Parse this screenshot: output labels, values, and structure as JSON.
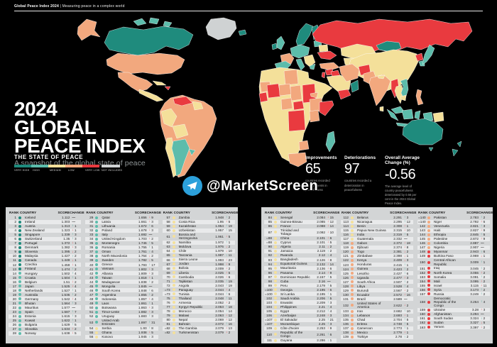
{
  "header": {
    "brand": "Global Peace Index 2024",
    "tagline": "| Measuring peace in a complex world"
  },
  "title": {
    "line1": "2024",
    "line2": "GLOBAL",
    "line3": "PEACE INDEX",
    "subtitle": "A snapshot of the global state of peace"
  },
  "legend": {
    "heading": "THE STATE OF PEACE",
    "labels": [
      "VERY HIGH",
      "HIGH",
      "MEDIUM",
      "LOW",
      "VERY LOW",
      "NOT INCLUDED"
    ]
  },
  "stats": {
    "improvements": {
      "label": "Improvements",
      "value": "65",
      "caption": "countries recorded improvements in peacefulness"
    },
    "deteriorations": {
      "label": "Deteriorations",
      "value": "97",
      "caption": "countries recorded a deterioration in peacefulness"
    },
    "overall": {
      "label": "Overall Average Change (%)",
      "value": "-0.56",
      "caption": "The average level of country peacefulness deteriorated by 0.56 per cent in the 2024 Global Peace Index."
    }
  },
  "watermark": {
    "handle": "@MarketScreen"
  },
  "colors": {
    "very_high": "#1f8b7d",
    "high": "#5cbcab",
    "medium": "#f4e09a",
    "low": "#f2a87e",
    "very_low": "#e93a3f",
    "not_included": "#cfd2d3",
    "telegram_blue": "#2ca0da",
    "up_arrow": "#2a9d8a",
    "down_arrow": "#e5393e",
    "panel_bg": "#d3d5d6",
    "row_stripe": "#e9eaeb"
  },
  "score_bands": {
    "very_high_max": 1.5,
    "high_max": 1.92,
    "medium_max": 2.36,
    "low_max": 2.92
  },
  "chart_data": {
    "type": "table",
    "headers": [
      "RANK",
      "COUNTRY",
      "SCORE",
      "CHANGE"
    ],
    "columns": [
      [
        [
          "1",
          "Iceland",
          "1.112",
          "0"
        ],
        [
          "2",
          "Ireland",
          "1.303",
          "0"
        ],
        [
          "3",
          "Austria",
          "1.313",
          "+1"
        ],
        [
          "4",
          "New Zealand",
          "1.323",
          "-1"
        ],
        [
          "5",
          "Singapore",
          "1.339",
          "+3"
        ],
        [
          "6",
          "Switzerland",
          "1.35",
          "+3"
        ],
        [
          "7",
          "Portugal",
          "1.372",
          "-1"
        ],
        [
          "8",
          "Denmark",
          "1.382",
          "-3"
        ],
        [
          "9",
          "Slovenia",
          "1.395",
          "-2"
        ],
        [
          "10",
          "Malaysia",
          "1.427",
          "+2"
        ],
        [
          "11",
          "Canada",
          "1.449",
          "-1"
        ],
        [
          "12",
          "Czechia",
          "1.459",
          "-1"
        ],
        [
          "13",
          "Finland",
          "1.474",
          "+2"
        ],
        [
          "14",
          "Hungary",
          "1.502",
          "+4"
        ],
        [
          "15",
          "Croatia",
          "1.504",
          "+1"
        ],
        [
          "16",
          "Belgium",
          "1.51",
          "-2"
        ],
        [
          "17",
          "Japan",
          "1.525",
          "-4"
        ],
        [
          "18",
          "Netherlands",
          "1.527",
          "+1"
        ],
        [
          "19",
          "Australia",
          "1.536",
          "+2"
        ],
        [
          "20",
          "Germany",
          "1.542",
          "-4"
        ],
        [
          "21",
          "Bhutan",
          "1.564",
          "+3"
        ],
        [
          "22",
          "Mauritius",
          "1.577",
          "0"
        ],
        [
          "23",
          "Spain",
          "1.587",
          "+7"
        ],
        [
          "24",
          "Estonia",
          "1.615",
          "+3"
        ],
        [
          "25",
          "Kuwait",
          "1.622",
          "+1"
        ],
        [
          "26",
          "Bulgaria",
          "1.629",
          "+5"
        ],
        [
          "27",
          "Slovakia",
          "1.634",
          "-2"
        ],
        [
          "28",
          "Norway",
          "1.638",
          "-5"
        ]
      ],
      [
        [
          "29",
          "Qatar",
          "1.656",
          "-9"
        ],
        [
          "30",
          "Latvia",
          "1.661",
          "-3"
        ],
        [
          "31",
          "Lithuania",
          "1.672",
          "+6"
        ],
        [
          "32",
          "Poland",
          "1.678",
          "-3"
        ],
        [
          "33",
          "Italy",
          "1.692",
          "0"
        ],
        [
          "34",
          "United Kingdom",
          "1.703",
          "-2"
        ],
        [
          "35",
          "Montenegro",
          "1.746",
          "+5"
        ],
        [
          "36",
          "Romania",
          "1.755",
          "+1"
        ],
        [
          "37",
          "Oman",
          "1.761",
          "+4"
        ],
        [
          "38",
          "North Macedonia",
          "1.764",
          "-2"
        ],
        [
          "39",
          "Sweden",
          "1.782",
          "-5"
        ],
        [
          "40",
          "Greece",
          "1.793",
          "+17"
        ],
        [
          "41",
          "Vietnam",
          "1.802",
          "-3"
        ],
        [
          "42",
          "Albania",
          "1.809",
          "-3"
        ],
        [
          "43",
          "Taiwan",
          "1.818",
          "-1"
        ],
        [
          "44",
          "Madagascar",
          "1.838",
          "+2"
        ],
        [
          "45",
          "Mongolia",
          "1.845",
          "0"
        ],
        [
          "46",
          "South Korea",
          "1.848",
          "+6"
        ],
        [
          "47",
          "Argentina",
          "1.855",
          "+2"
        ],
        [
          "48",
          "Indonesia",
          "1.857",
          "-4"
        ],
        [
          "49",
          "Laos",
          "1.861",
          "+1"
        ],
        [
          "50",
          "Botswana",
          "1.863",
          "-3"
        ],
        [
          "51",
          "Timor-Leste",
          "1.882",
          "-3"
        ],
        [
          "52",
          "Uruguay",
          "1.883",
          "+3"
        ],
        [
          "53",
          "United Arab Emirates",
          "1.897",
          "+31"
        ],
        [
          "54",
          "Serbia",
          "1.93",
          "+8"
        ],
        [
          "55",
          "Ghana",
          "1.938",
          "-5"
        ],
        [
          "56",
          "Kosovo",
          "1.945",
          "+3"
        ]
      ],
      [
        [
          "57",
          "Zambia",
          "1.948",
          "+2"
        ],
        [
          "58",
          "Costa Rica",
          "1.95",
          "-5"
        ],
        [
          "59",
          "Kazakhstan",
          "1.954",
          "+19"
        ],
        [
          "60",
          "Uzbekistan",
          "1.957",
          "+15"
        ],
        [
          "61",
          "Bosnia and Herzegovina",
          "1.961",
          "-5"
        ],
        [
          "62",
          "Namibia",
          "1.972",
          "+1"
        ],
        [
          "63",
          "Moldova",
          "1.976",
          "-2"
        ],
        [
          "64",
          "Chile",
          "1.979",
          "-10"
        ],
        [
          "65",
          "Tanzania",
          "1.987",
          "+11"
        ],
        [
          "66",
          "Sierra Leone",
          "1.993",
          "-23"
        ],
        [
          "67",
          "Jordan",
          "1.998",
          "-9"
        ],
        [
          "68",
          "Bolivia",
          "2.009",
          "-2"
        ],
        [
          "69",
          "Liberia",
          "2.025",
          "-5"
        ],
        [
          "70",
          "Cambodia",
          "2.026",
          "-6"
        ],
        [
          "71",
          "Tajikistan",
          "2.035",
          "+19"
        ],
        [
          "72",
          "Angola",
          "2.043",
          "+19"
        ],
        [
          "=73",
          "Paraguay",
          "2.044",
          "-4"
        ],
        [
          "=73",
          "Tunisia",
          "2.044",
          "+6"
        ],
        [
          "75",
          "Thailand",
          "2.048",
          "+11"
        ],
        [
          "76",
          "Armenia",
          "2.052",
          "-2"
        ],
        [
          "77",
          "Kyrgyz Republic",
          "2.053",
          "+18"
        ],
        [
          "78",
          "Morocco",
          "2.054",
          "+14"
        ],
        [
          "79",
          "Malawi",
          "2.063",
          "-12"
        ],
        [
          "80",
          "Nepal",
          "2.069",
          "-12"
        ],
        [
          "81",
          "Bahrain",
          "2.072",
          "+16"
        ],
        [
          "=82",
          "The Gambia",
          "2.079",
          "-13"
        ],
        [
          "=82",
          "Turkmenistan",
          "2.079",
          "-2"
        ]
      ],
      [
        [
          "84",
          "Senegal",
          "2.084",
          "-15"
        ],
        [
          "85",
          "Guinea-Bissau",
          "2.085",
          "-12"
        ],
        [
          "86",
          "France",
          "2.088",
          "-14"
        ],
        [
          "87",
          "Trinidad and Tobago",
          "2.092",
          "-10"
        ],
        [
          "=88",
          "China",
          "2.101",
          "-6"
        ],
        [
          "=88",
          "Cyprus",
          "2.101",
          "-5"
        ],
        [
          "90",
          "Algeria",
          "2.11",
          "-2"
        ],
        [
          "91",
          "Jamaica",
          "2.119",
          "+2"
        ],
        [
          "92",
          "Rwanda",
          "2.12",
          "+4"
        ],
        [
          "93",
          "Bangladesh",
          "2.126",
          "-8"
        ],
        [
          "94",
          "Equatorial Guinea",
          "2.132",
          "-14"
        ],
        [
          "95",
          "Mauritania",
          "2.136",
          "-6"
        ],
        [
          "96",
          "Panama",
          "2.14",
          "-9"
        ],
        [
          "97",
          "Dominican Republic",
          "2.157",
          "+5"
        ],
        [
          "98",
          "Cuba",
          "2.16",
          "0"
        ],
        [
          "99",
          "Peru",
          "2.179",
          "+5"
        ],
        [
          "=100",
          "Georgia",
          "2.195",
          "-6"
        ],
        [
          "=100",
          "Sri Lanka",
          "2.195",
          "+1"
        ],
        [
          "102",
          "Saudi Arabia",
          "2.206",
          "+5"
        ],
        [
          "103",
          "Eswatini",
          "2.209",
          "+3"
        ],
        [
          "104",
          "Philippines",
          "2.21",
          "+4"
        ],
        [
          "105",
          "Egypt",
          "2.212",
          "+4"
        ],
        [
          "106",
          "Azerbaijan",
          "2.248",
          "-3"
        ],
        [
          "=107",
          "El Salvador",
          "2.25",
          "+21"
        ],
        [
          "=107",
          "Mozambique",
          "2.25",
          "+3"
        ],
        [
          "109",
          "Côte d'Ivoire",
          "2.253",
          "-9"
        ],
        [
          "110",
          "Republic of the Congo",
          "2.261",
          "+6"
        ],
        [
          "111",
          "Guyana",
          "2.286",
          "+1"
        ]
      ],
      [
        [
          "112",
          "Belarus",
          "2.291",
          "+3"
        ],
        [
          "113",
          "Nicaragua",
          "2.295",
          "+12"
        ],
        [
          "114",
          "Benin",
          "2.308",
          "-1"
        ],
        [
          "115",
          "Papua New Guinea",
          "2.315",
          "-10"
        ],
        [
          "116",
          "India",
          "2.319",
          "+5"
        ],
        [
          "117",
          "Guatemala",
          "2.332",
          "0"
        ],
        [
          "118",
          "Gabon",
          "2.372",
          "-18"
        ],
        [
          "119",
          "Djibouti",
          "2.374",
          "-8"
        ],
        [
          "120",
          "Togo",
          "2.381",
          "-2"
        ],
        [
          "121",
          "Zimbabwe",
          "2.398",
          "-1"
        ],
        [
          "122",
          "Kenya",
          "2.409",
          "-3"
        ],
        [
          "123",
          "Honduras",
          "2.415",
          "+1"
        ],
        [
          "124",
          "Guinea",
          "2.423",
          "+2"
        ],
        [
          "125",
          "Lesotho",
          "2.427",
          "+6"
        ],
        [
          "126",
          "Uganda",
          "2.477",
          "-3"
        ],
        [
          "127",
          "South Africa",
          "2.507",
          "+2"
        ],
        [
          "128",
          "Libya",
          "2.528",
          "+4"
        ],
        [
          "129",
          "Burundi",
          "2.567",
          "-2"
        ],
        [
          "130",
          "Ecuador",
          "2.572",
          "-16"
        ],
        [
          "131",
          "Brazil",
          "2.589",
          "0"
        ],
        [
          "132",
          "United States of America",
          "2.622",
          "-2"
        ],
        [
          "133",
          "Iran",
          "2.682",
          "+10"
        ],
        [
          "134",
          "Lebanon",
          "2.693",
          "-1"
        ],
        [
          "135",
          "Chad",
          "2.704",
          "+5"
        ],
        [
          "136",
          "Eritrea",
          "2.748",
          "+5"
        ],
        [
          "137",
          "Cameroon",
          "2.773",
          "+1"
        ],
        [
          "138",
          "Mexico",
          "2.779",
          "-1"
        ],
        [
          "139",
          "Türkiye",
          "2.78",
          "+2"
        ]
      ],
      [
        [
          "=140",
          "Pakistan",
          "2.783",
          "+2"
        ],
        [
          "=140",
          "Niger",
          "2.792",
          "-6"
        ],
        [
          "142",
          "Venezuela",
          "2.821",
          "+3"
        ],
        [
          "143",
          "Haiti",
          "2.827",
          "-9"
        ],
        [
          "144",
          "Ethiopia",
          "2.845",
          "+5"
        ],
        [
          "145",
          "Palestine",
          "2.872",
          "-9"
        ],
        [
          "146",
          "Colombia",
          "2.887",
          "0"
        ],
        [
          "147",
          "Nigeria",
          "2.907",
          "0"
        ],
        [
          "148",
          "Myanmar",
          "2.943",
          "+6"
        ],
        [
          "149",
          "Burkina Faso",
          "2.969",
          "-1"
        ],
        [
          "150",
          "Central African Republic",
          "3.009",
          "+1"
        ],
        [
          "151",
          "Iraq",
          "3.045",
          "+2"
        ],
        [
          "152",
          "North Korea",
          "3.055",
          "-2"
        ],
        [
          "153",
          "Somalia",
          "3.091",
          "+2"
        ],
        [
          "154",
          "Mali",
          "3.095",
          "-2"
        ],
        [
          "155",
          "Israel",
          "3.115",
          "-11"
        ],
        [
          "156",
          "Syria",
          "3.173",
          "+2"
        ],
        [
          "157",
          "Russia",
          "3.249",
          "+2"
        ],
        [
          "158",
          "Democratic Republic of the Congo",
          "3.264",
          "+4"
        ],
        [
          "159",
          "Ukraine",
          "3.28",
          "-3"
        ],
        [
          "160",
          "Afghanistan",
          "3.294",
          "0"
        ],
        [
          "161",
          "South Sudan",
          "3.324",
          "+2"
        ],
        [
          "162",
          "Sudan",
          "3.327",
          "-5"
        ],
        [
          "163",
          "Yemen",
          "3.397",
          "-2"
        ]
      ]
    ]
  }
}
